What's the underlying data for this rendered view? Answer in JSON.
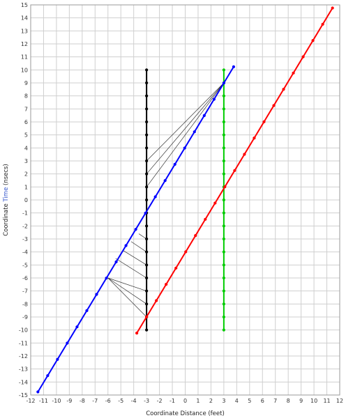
{
  "chart_data": {
    "type": "line",
    "title": "",
    "xlabel": "Coordinate Distance (feet)",
    "ylabel_parts": [
      "Coordinate ",
      "Time",
      " (nsecs)"
    ],
    "xlim": [
      -12,
      12
    ],
    "ylim": [
      -15,
      15
    ],
    "x_ticks": [
      -12,
      -11,
      -10,
      -9,
      -8,
      -7,
      -6,
      -5,
      -4,
      -3,
      -2,
      -1,
      0,
      1,
      2,
      3,
      4,
      5,
      6,
      7,
      8,
      9,
      10,
      11,
      12
    ],
    "y_ticks": [
      -15,
      -14,
      -13,
      -12,
      -11,
      -10,
      -9,
      -8,
      -7,
      -6,
      -5,
      -4,
      -3,
      -2,
      -1,
      0,
      1,
      2,
      3,
      4,
      5,
      6,
      7,
      8,
      9,
      10,
      11,
      12,
      13,
      14,
      15
    ],
    "grid": true,
    "colors": {
      "black": "#000000",
      "green": "#00cc00",
      "blue": "#0000ff",
      "red": "#ff0000",
      "hatch": "#333333",
      "grid": "#cfcfcf",
      "ylabel_accent": "#3355cc"
    },
    "series": [
      {
        "color": "#000000",
        "x": [
          -3,
          -3
        ],
        "y": [
          -10,
          10
        ],
        "marker_step": 1
      },
      {
        "color": "#00cc00",
        "x": [
          3,
          3
        ],
        "y": [
          -10,
          10
        ],
        "marker_step": 1
      },
      {
        "color": "#0000ff",
        "x": [
          -11.44,
          3.76
        ],
        "y": [
          -14.76,
          10.24
        ],
        "marker_step": 1.25
      },
      {
        "color": "#ff0000",
        "x": [
          -3.76,
          11.44
        ],
        "y": [
          -10.24,
          14.76
        ],
        "marker_step": 1.25
      }
    ],
    "hatch_lines": [
      {
        "x1": -3,
        "y1": 3,
        "x2": 3,
        "y2": 9
      },
      {
        "x1": -3,
        "y1": 2,
        "x2": 3,
        "y2": 9
      },
      {
        "x1": -3,
        "y1": 1,
        "x2": 3,
        "y2": 9
      },
      {
        "x1": -3,
        "y1": -3,
        "x2": -3.6,
        "y2": -2.6
      },
      {
        "x1": -3,
        "y1": -4,
        "x2": -4.2,
        "y2": -3.2
      },
      {
        "x1": -3,
        "y1": -5,
        "x2": -4.8,
        "y2": -3.9
      },
      {
        "x1": -3,
        "y1": -6,
        "x2": -5.4,
        "y2": -4.5
      },
      {
        "x1": -3,
        "y1": -7,
        "x2": -6.0,
        "y2": -6.0
      },
      {
        "x1": -3,
        "y1": -8,
        "x2": -6.0,
        "y2": -6.0
      },
      {
        "x1": -3,
        "y1": -9,
        "x2": -6.0,
        "y2": -6.0
      }
    ]
  }
}
